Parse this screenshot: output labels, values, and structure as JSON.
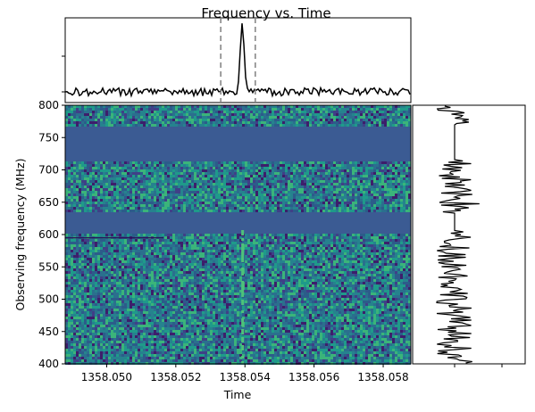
{
  "chart_data": [
    {
      "type": "line",
      "panel": "top-profile",
      "title": "Frequency vs. Time",
      "xlim": [
        1358.0488,
        1358.0588
      ],
      "y_ticks_labeled": false,
      "pulse_peak_time": 1358.05392,
      "pulse_peak_height": 1.0,
      "noise_level": 0.05,
      "pulse_width": 8e-05,
      "marker_lines": [
        1358.0533,
        1358.0543
      ],
      "marker_style": "dashed"
    },
    {
      "type": "heatmap",
      "panel": "waterfall",
      "xlabel": "Time",
      "ylabel": "Observing frequency (MHz)",
      "xlim": [
        1358.0488,
        1358.0588
      ],
      "ylim": [
        400,
        800
      ],
      "x_ticks": [
        "1358.050",
        "1358.052",
        "1358.054",
        "1358.056",
        "1358.058"
      ],
      "y_ticks": [
        "400",
        "450",
        "500",
        "550",
        "600",
        "650",
        "700",
        "750",
        "800"
      ],
      "masked_bands_mhz": [
        [
          715,
          770
        ],
        [
          605,
          635
        ]
      ],
      "bright_streak_time": 1358.05392,
      "colormap": "viridis"
    },
    {
      "type": "line",
      "panel": "spectrum",
      "orientation": "vertical",
      "ylim": [
        400,
        800
      ],
      "x_ticks_labeled": false,
      "flat_bands_mhz": [
        [
          715,
          770
        ],
        [
          605,
          635
        ]
      ]
    }
  ],
  "colors": {
    "masked": "#3b5b93",
    "line": "#000000",
    "marker": "#808080"
  }
}
